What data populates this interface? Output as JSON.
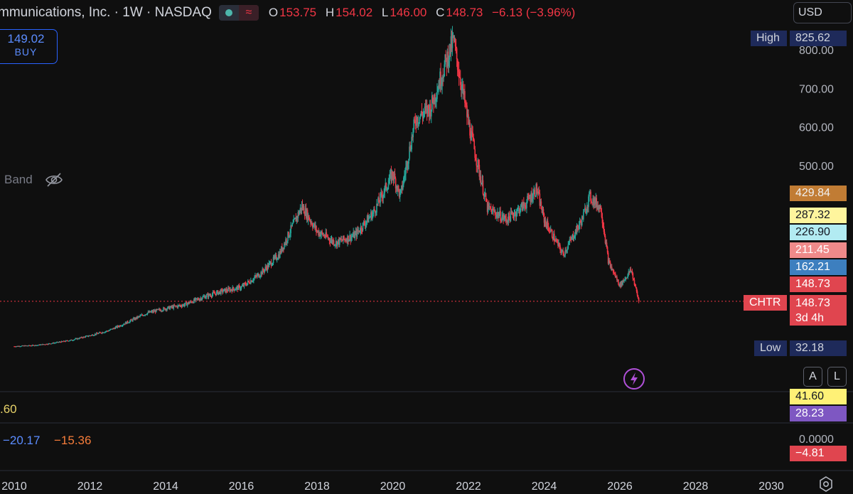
{
  "header": {
    "symbol_title": "mmunications, Inc. · 1W · NASDAQ",
    "wave_glyph": "≈",
    "ohlc": [
      {
        "key": "O",
        "value": "153.75"
      },
      {
        "key": "H",
        "value": "154.02"
      },
      {
        "key": "L",
        "value": "146.00"
      },
      {
        "key": "C",
        "value": "148.73"
      }
    ],
    "change": "−6.13 (−3.96%)",
    "currency": "USD"
  },
  "trade": {
    "price": "149.02",
    "action": "BUY"
  },
  "indicator_band": {
    "label": "Band"
  },
  "price_tags": {
    "high": {
      "label": "High",
      "value": "825.62"
    },
    "low": {
      "label": "Low",
      "value": "32.18"
    },
    "tag_429": "429.84",
    "tag_287": "287.32",
    "tag_226": "226.90",
    "tag_211": "211.45",
    "tag_162": "162.21",
    "tag_148": "148.73",
    "ticker": "CHTR",
    "last": "148.73",
    "countdown": "3d 4h"
  },
  "indicator_panes": {
    "pane1_left_value": ".60",
    "pane1_axis_value": "41.60",
    "pane1_axis_value2": "28.23",
    "pane2_left_value1": "−20.17",
    "pane2_left_value2": "−15.36",
    "pane2_zero": "0.0000",
    "pane2_axis_value": "−4.81"
  },
  "buttons": {
    "auto": "A",
    "log": "L"
  },
  "colors": {
    "up": "#26a69a",
    "down": "#f23645",
    "background": "#0f0f0f",
    "high_tag": "#1e2a5a",
    "accent": "#2962ff"
  },
  "chart_data": {
    "type": "candlestick",
    "interval": "1W",
    "exchange": "NASDAQ",
    "ylim": [
      0,
      850
    ],
    "y_ticks": [
      "800.00",
      "700.00",
      "600.00",
      "500.00"
    ],
    "y_tick_values": [
      800,
      700,
      600,
      500
    ],
    "x_ticks": [
      "2010",
      "2012",
      "2014",
      "2016",
      "2018",
      "2020",
      "2022",
      "2024",
      "2026",
      "2028",
      "2030"
    ],
    "x_range": [
      2009.8,
      2030.9
    ],
    "last_price": 148.73,
    "price_path": [
      [
        2010.0,
        32
      ],
      [
        2010.6,
        35
      ],
      [
        2011.0,
        40
      ],
      [
        2011.5,
        48
      ],
      [
        2012.0,
        60
      ],
      [
        2012.5,
        73
      ],
      [
        2013.0,
        95
      ],
      [
        2013.5,
        118
      ],
      [
        2014.0,
        130
      ],
      [
        2014.5,
        140
      ],
      [
        2015.0,
        160
      ],
      [
        2015.5,
        175
      ],
      [
        2016.0,
        185
      ],
      [
        2016.5,
        220
      ],
      [
        2017.0,
        270
      ],
      [
        2017.6,
        395
      ],
      [
        2018.0,
        330
      ],
      [
        2018.5,
        300
      ],
      [
        2019.0,
        320
      ],
      [
        2019.5,
        380
      ],
      [
        2020.0,
        480
      ],
      [
        2020.2,
        420
      ],
      [
        2020.6,
        620
      ],
      [
        2021.0,
        650
      ],
      [
        2021.6,
        825
      ],
      [
        2022.0,
        610
      ],
      [
        2022.5,
        390
      ],
      [
        2023.0,
        360
      ],
      [
        2023.5,
        400
      ],
      [
        2023.8,
        440
      ],
      [
        2024.0,
        360
      ],
      [
        2024.5,
        270
      ],
      [
        2025.0,
        360
      ],
      [
        2025.2,
        420
      ],
      [
        2025.5,
        390
      ],
      [
        2025.7,
        250
      ],
      [
        2026.0,
        190
      ],
      [
        2026.3,
        230
      ],
      [
        2026.5,
        148.73
      ]
    ]
  }
}
